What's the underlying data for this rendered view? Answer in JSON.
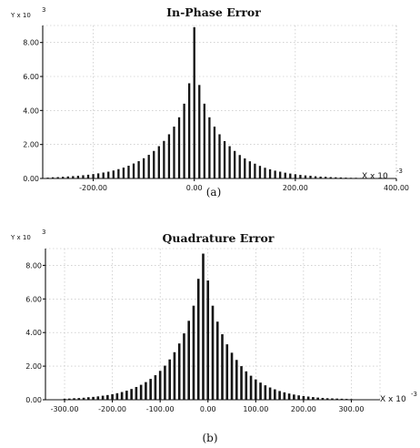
{
  "chart_data": [
    {
      "type": "bar",
      "panel": "a",
      "title": "In-Phase Error",
      "caption": "(a)",
      "ylabel": "Y x 10",
      "ylabel_exp": "3",
      "xlabel": "X x 10",
      "xlabel_exp": "-3",
      "xlim": [
        -300,
        400
      ],
      "ylim": [
        0,
        9
      ],
      "xticks": [
        -200,
        0,
        200,
        400
      ],
      "xtick_labels": [
        "-200.00",
        "0.00",
        "200.00",
        "400.00"
      ],
      "yticks": [
        0,
        2,
        4,
        6,
        8
      ],
      "ytick_labels": [
        "0.00",
        "2.00",
        "4.00",
        "6.00",
        "8.00"
      ],
      "grid": true,
      "x": [
        -290,
        -280,
        -270,
        -260,
        -250,
        -240,
        -230,
        -220,
        -210,
        -200,
        -190,
        -180,
        -170,
        -160,
        -150,
        -140,
        -130,
        -120,
        -110,
        -100,
        -90,
        -80,
        -70,
        -60,
        -50,
        -40,
        -30,
        -20,
        -10,
        0,
        10,
        20,
        30,
        40,
        50,
        60,
        70,
        80,
        90,
        100,
        110,
        120,
        130,
        140,
        150,
        160,
        170,
        180,
        190,
        200,
        210,
        220,
        230,
        240,
        250,
        260,
        270,
        280,
        290,
        300,
        310,
        320,
        330,
        340
      ],
      "values": [
        0.05,
        0.07,
        0.08,
        0.1,
        0.12,
        0.14,
        0.16,
        0.19,
        0.22,
        0.26,
        0.3,
        0.35,
        0.4,
        0.47,
        0.55,
        0.64,
        0.75,
        0.88,
        1.02,
        1.19,
        1.39,
        1.62,
        1.9,
        2.21,
        2.6,
        3.05,
        3.6,
        4.4,
        5.6,
        8.9,
        5.5,
        4.4,
        3.6,
        3.05,
        2.6,
        2.2,
        1.9,
        1.62,
        1.38,
        1.18,
        1.01,
        0.87,
        0.74,
        0.63,
        0.54,
        0.46,
        0.4,
        0.34,
        0.29,
        0.25,
        0.21,
        0.18,
        0.16,
        0.13,
        0.11,
        0.1,
        0.08,
        0.07,
        0.06,
        0.05,
        0.04,
        0.04,
        0.03,
        0.03
      ]
    },
    {
      "type": "bar",
      "panel": "b",
      "title": "Quadrature Error",
      "caption": "(b)",
      "ylabel": "Y x 10",
      "ylabel_exp": "3",
      "xlabel": "X x 10",
      "xlabel_exp": "-3",
      "xlim": [
        -340,
        360
      ],
      "ylim": [
        0,
        9
      ],
      "xticks": [
        -300,
        -200,
        -100,
        0,
        100,
        200,
        300
      ],
      "xtick_labels": [
        "-300.00",
        "-200.00",
        "-100.00",
        "0.00",
        "100.00",
        "200.00",
        "300.00"
      ],
      "yticks": [
        0,
        2,
        4,
        6,
        8
      ],
      "ytick_labels": [
        "0.00",
        "2.00",
        "4.00",
        "6.00",
        "8.00"
      ],
      "grid": true,
      "x": [
        -300,
        -290,
        -280,
        -270,
        -260,
        -250,
        -240,
        -230,
        -220,
        -210,
        -200,
        -190,
        -180,
        -170,
        -160,
        -150,
        -140,
        -130,
        -120,
        -110,
        -100,
        -90,
        -80,
        -70,
        -60,
        -50,
        -40,
        -30,
        -20,
        -10,
        0,
        10,
        20,
        30,
        40,
        50,
        60,
        70,
        80,
        90,
        100,
        110,
        120,
        130,
        140,
        150,
        160,
        170,
        180,
        190,
        200,
        210,
        220,
        230,
        240,
        250,
        260,
        270,
        280,
        290,
        300
      ],
      "values": [
        0.06,
        0.07,
        0.09,
        0.1,
        0.12,
        0.15,
        0.17,
        0.2,
        0.24,
        0.28,
        0.33,
        0.39,
        0.46,
        0.54,
        0.64,
        0.76,
        0.89,
        1.05,
        1.24,
        1.46,
        1.72,
        2.03,
        2.4,
        2.83,
        3.35,
        3.95,
        4.7,
        5.6,
        7.2,
        8.7,
        7.1,
        5.6,
        4.65,
        3.9,
        3.3,
        2.8,
        2.37,
        2.0,
        1.69,
        1.43,
        1.21,
        1.02,
        0.86,
        0.73,
        0.62,
        0.52,
        0.44,
        0.37,
        0.31,
        0.26,
        0.22,
        0.19,
        0.16,
        0.13,
        0.11,
        0.09,
        0.08,
        0.07,
        0.06,
        0.05,
        0.04
      ]
    }
  ]
}
